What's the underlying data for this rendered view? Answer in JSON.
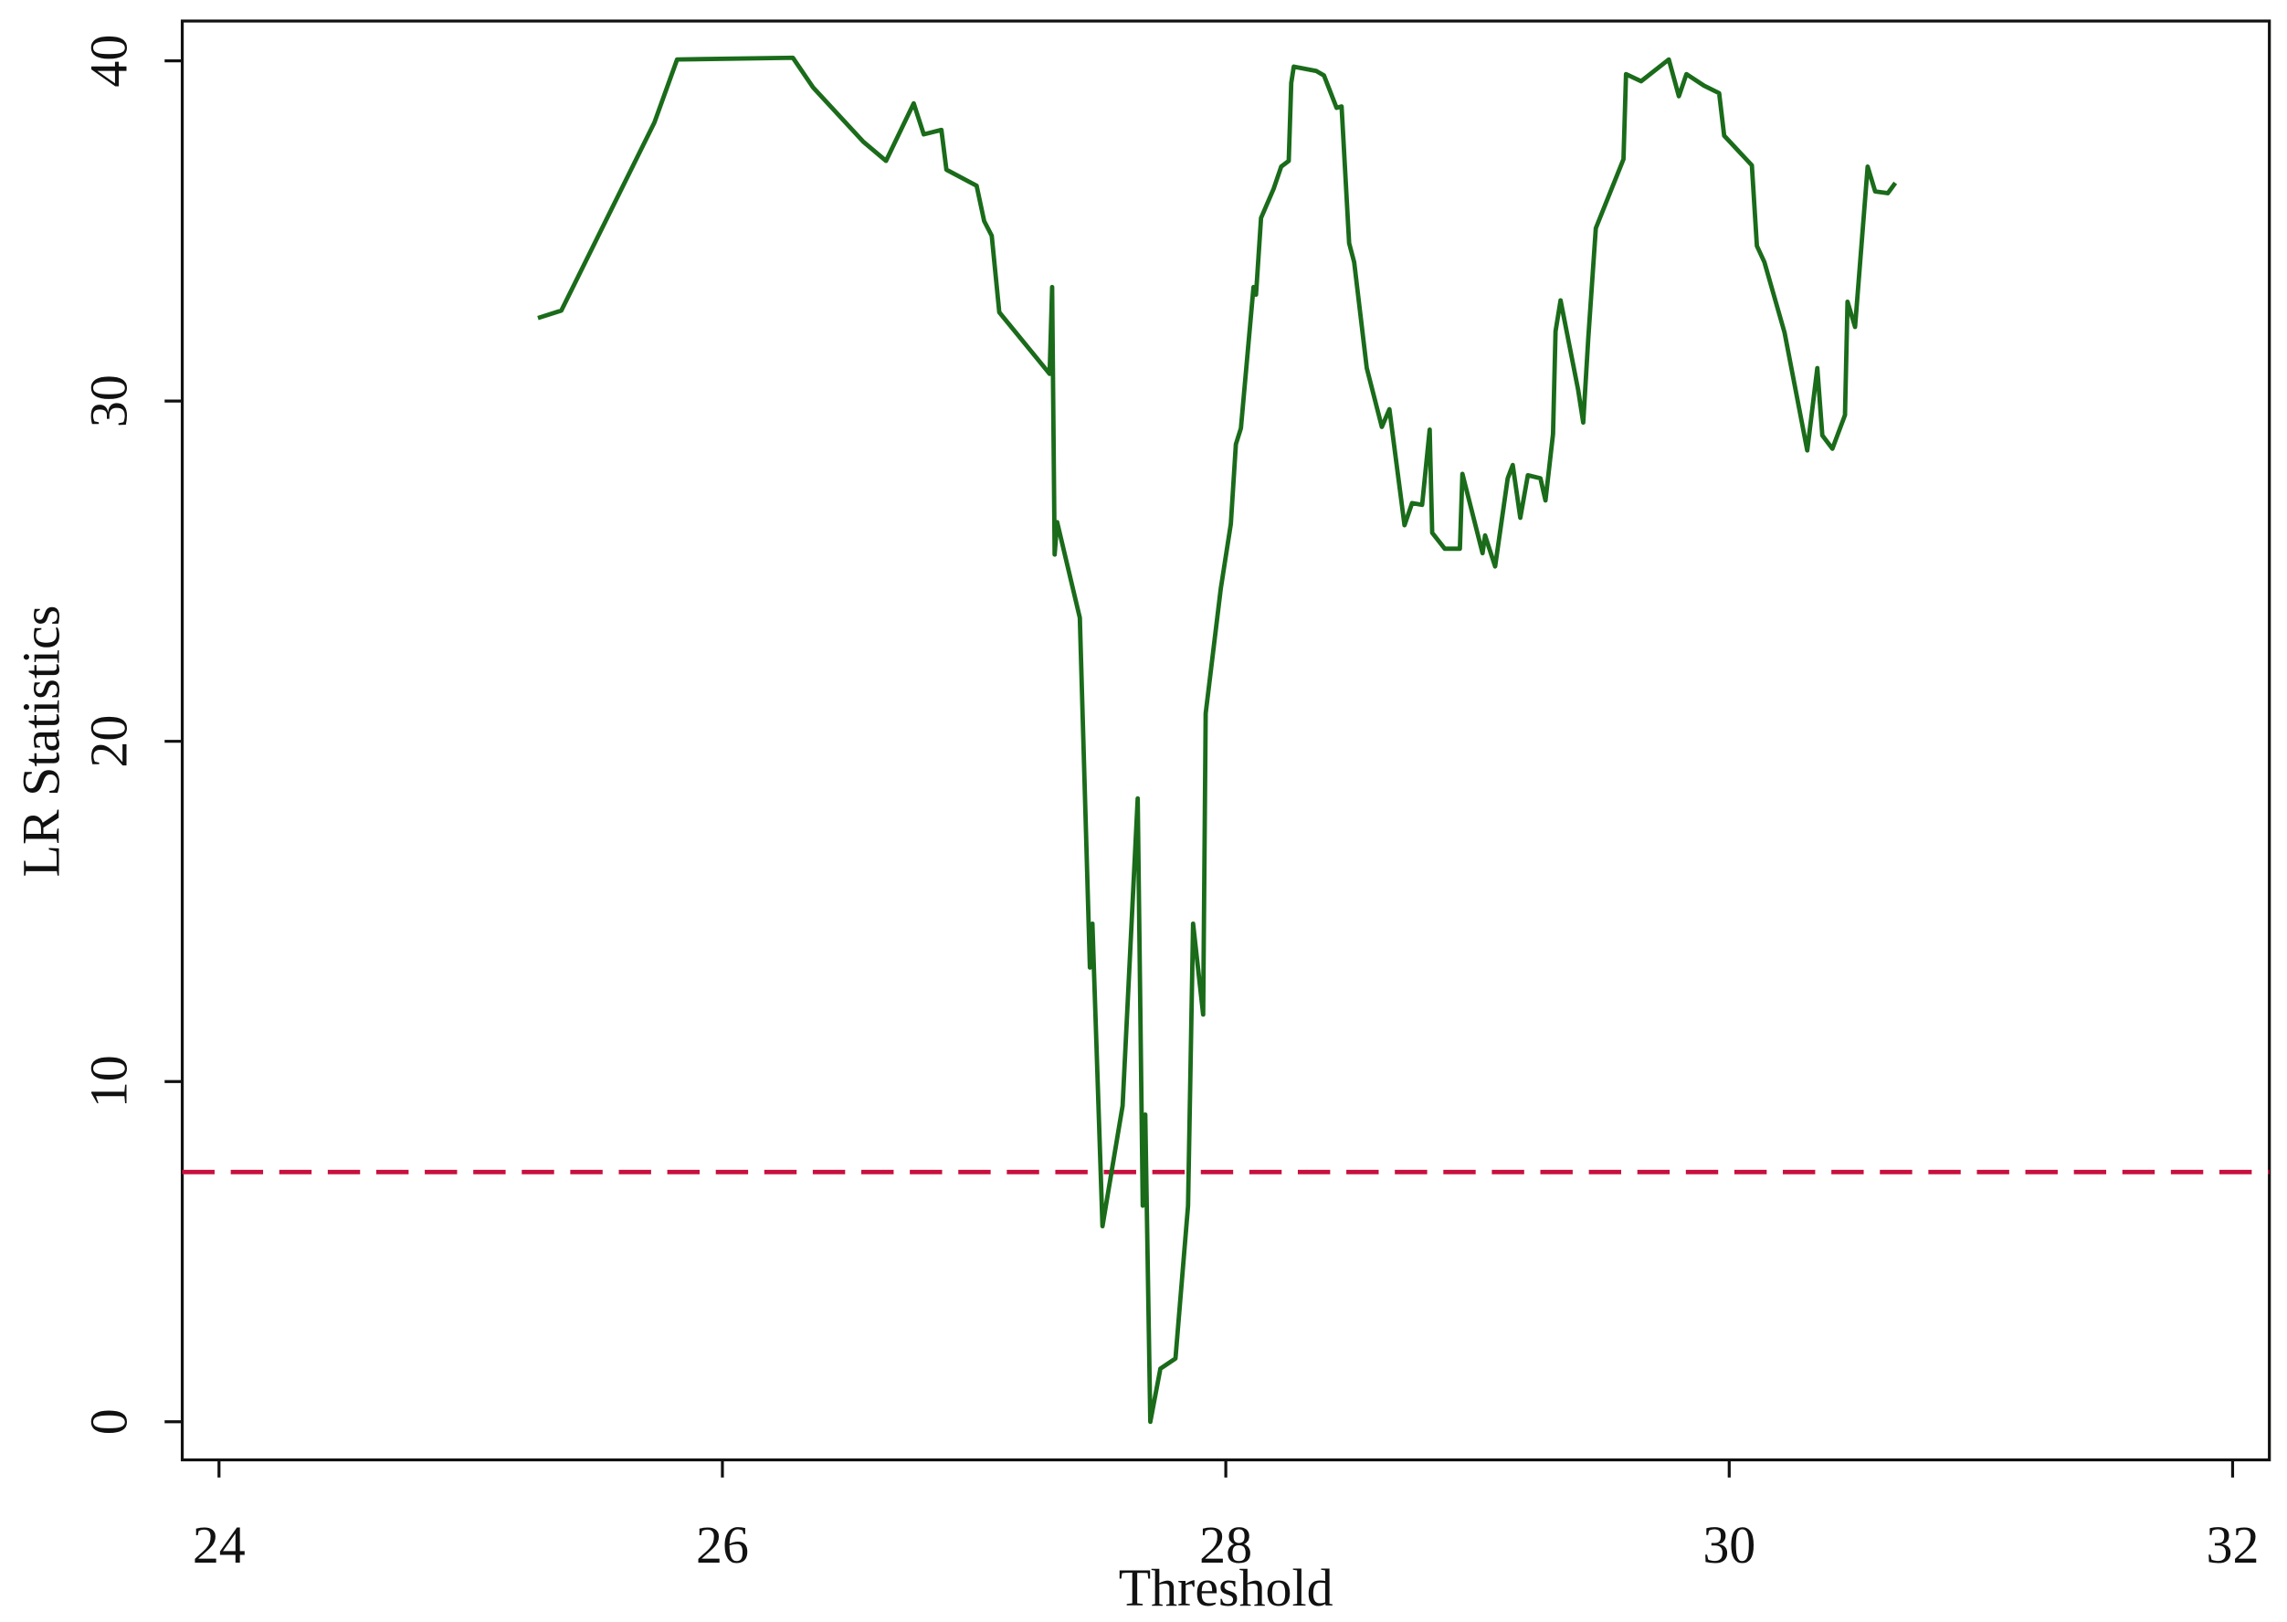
{
  "chart_data": {
    "type": "line",
    "xlabel": "Threshold",
    "ylabel": "LR Statistics",
    "x": [
      25.267,
      25.36,
      25.73,
      25.82,
      26.28,
      26.36,
      26.56,
      26.65,
      26.76,
      26.8,
      26.87,
      26.89,
      27.01,
      27.04,
      27.07,
      27.1,
      27.3,
      27.31,
      27.32,
      27.33,
      27.42,
      27.46,
      27.47,
      27.51,
      27.59,
      27.65,
      27.67,
      27.68,
      27.7,
      27.74,
      27.8,
      27.85,
      27.87,
      27.91,
      27.92,
      27.98,
      28.02,
      28.04,
      28.06,
      28.11,
      28.12,
      28.14,
      28.19,
      28.22,
      28.25,
      28.26,
      28.27,
      28.36,
      28.39,
      28.44,
      28.46,
      28.49,
      28.51,
      28.56,
      28.62,
      28.65,
      28.71,
      28.74,
      28.78,
      28.81,
      28.82,
      28.87,
      28.93,
      28.94,
      29.02,
      29.03,
      29.07,
      29.12,
      29.14,
      29.17,
      29.2,
      29.25,
      29.27,
      29.3,
      29.31,
      29.33,
      29.4,
      29.42,
      29.44,
      29.47,
      29.58,
      29.59,
      29.65,
      29.76,
      29.8,
      29.83,
      29.9,
      29.96,
      29.98,
      30.09,
      30.11,
      30.14,
      30.22,
      30.31,
      30.35,
      30.37,
      30.41,
      30.46,
      30.47,
      30.5,
      30.55,
      30.58,
      30.63,
      30.66
    ],
    "values": [
      32.44,
      32.66,
      38.19,
      40.04,
      40.09,
      39.22,
      37.62,
      37.06,
      38.75,
      37.84,
      37.97,
      36.8,
      36.33,
      35.29,
      34.86,
      32.61,
      30.8,
      33.35,
      25.49,
      26.44,
      23.63,
      13.35,
      14.64,
      5.75,
      9.29,
      18.32,
      6.35,
      9.03,
      0,
      1.56,
      1.86,
      6.35,
      14.64,
      11.97,
      20.82,
      24.49,
      26.39,
      28.73,
      29.2,
      33.35,
      33.13,
      35.38,
      36.24,
      36.89,
      37.06,
      39.35,
      39.83,
      39.7,
      39.57,
      38.62,
      38.66,
      34.64,
      34.08,
      30.97,
      29.24,
      29.76,
      26.35,
      27.0,
      26.95,
      29.16,
      26.13,
      25.66,
      25.66,
      27.86,
      25.53,
      26.05,
      25.14,
      27.73,
      28.12,
      26.57,
      27.82,
      27.73,
      27.08,
      29.03,
      32.05,
      32.96,
      30.32,
      29.37,
      31.84,
      35.08,
      37.11,
      39.61,
      39.4,
      40.04,
      38.96,
      39.61,
      39.27,
      39.05,
      37.8,
      36.93,
      34.56,
      34.08,
      32.01,
      28.55,
      30.97,
      28.99,
      28.6,
      29.59,
      32.92,
      32.18,
      36.89,
      36.16,
      36.11,
      36.41
    ],
    "color": "#1a6b1a",
    "hline": {
      "value": 7.34,
      "color": "#c8103e",
      "dash": true
    },
    "xlim": [
      23.854,
      32.146
    ],
    "xticks": [
      24,
      26,
      28,
      30,
      32
    ],
    "ylim": [
      -1.12,
      41.17
    ],
    "yticks": [
      0,
      10,
      20,
      30,
      40
    ],
    "grid": false
  }
}
